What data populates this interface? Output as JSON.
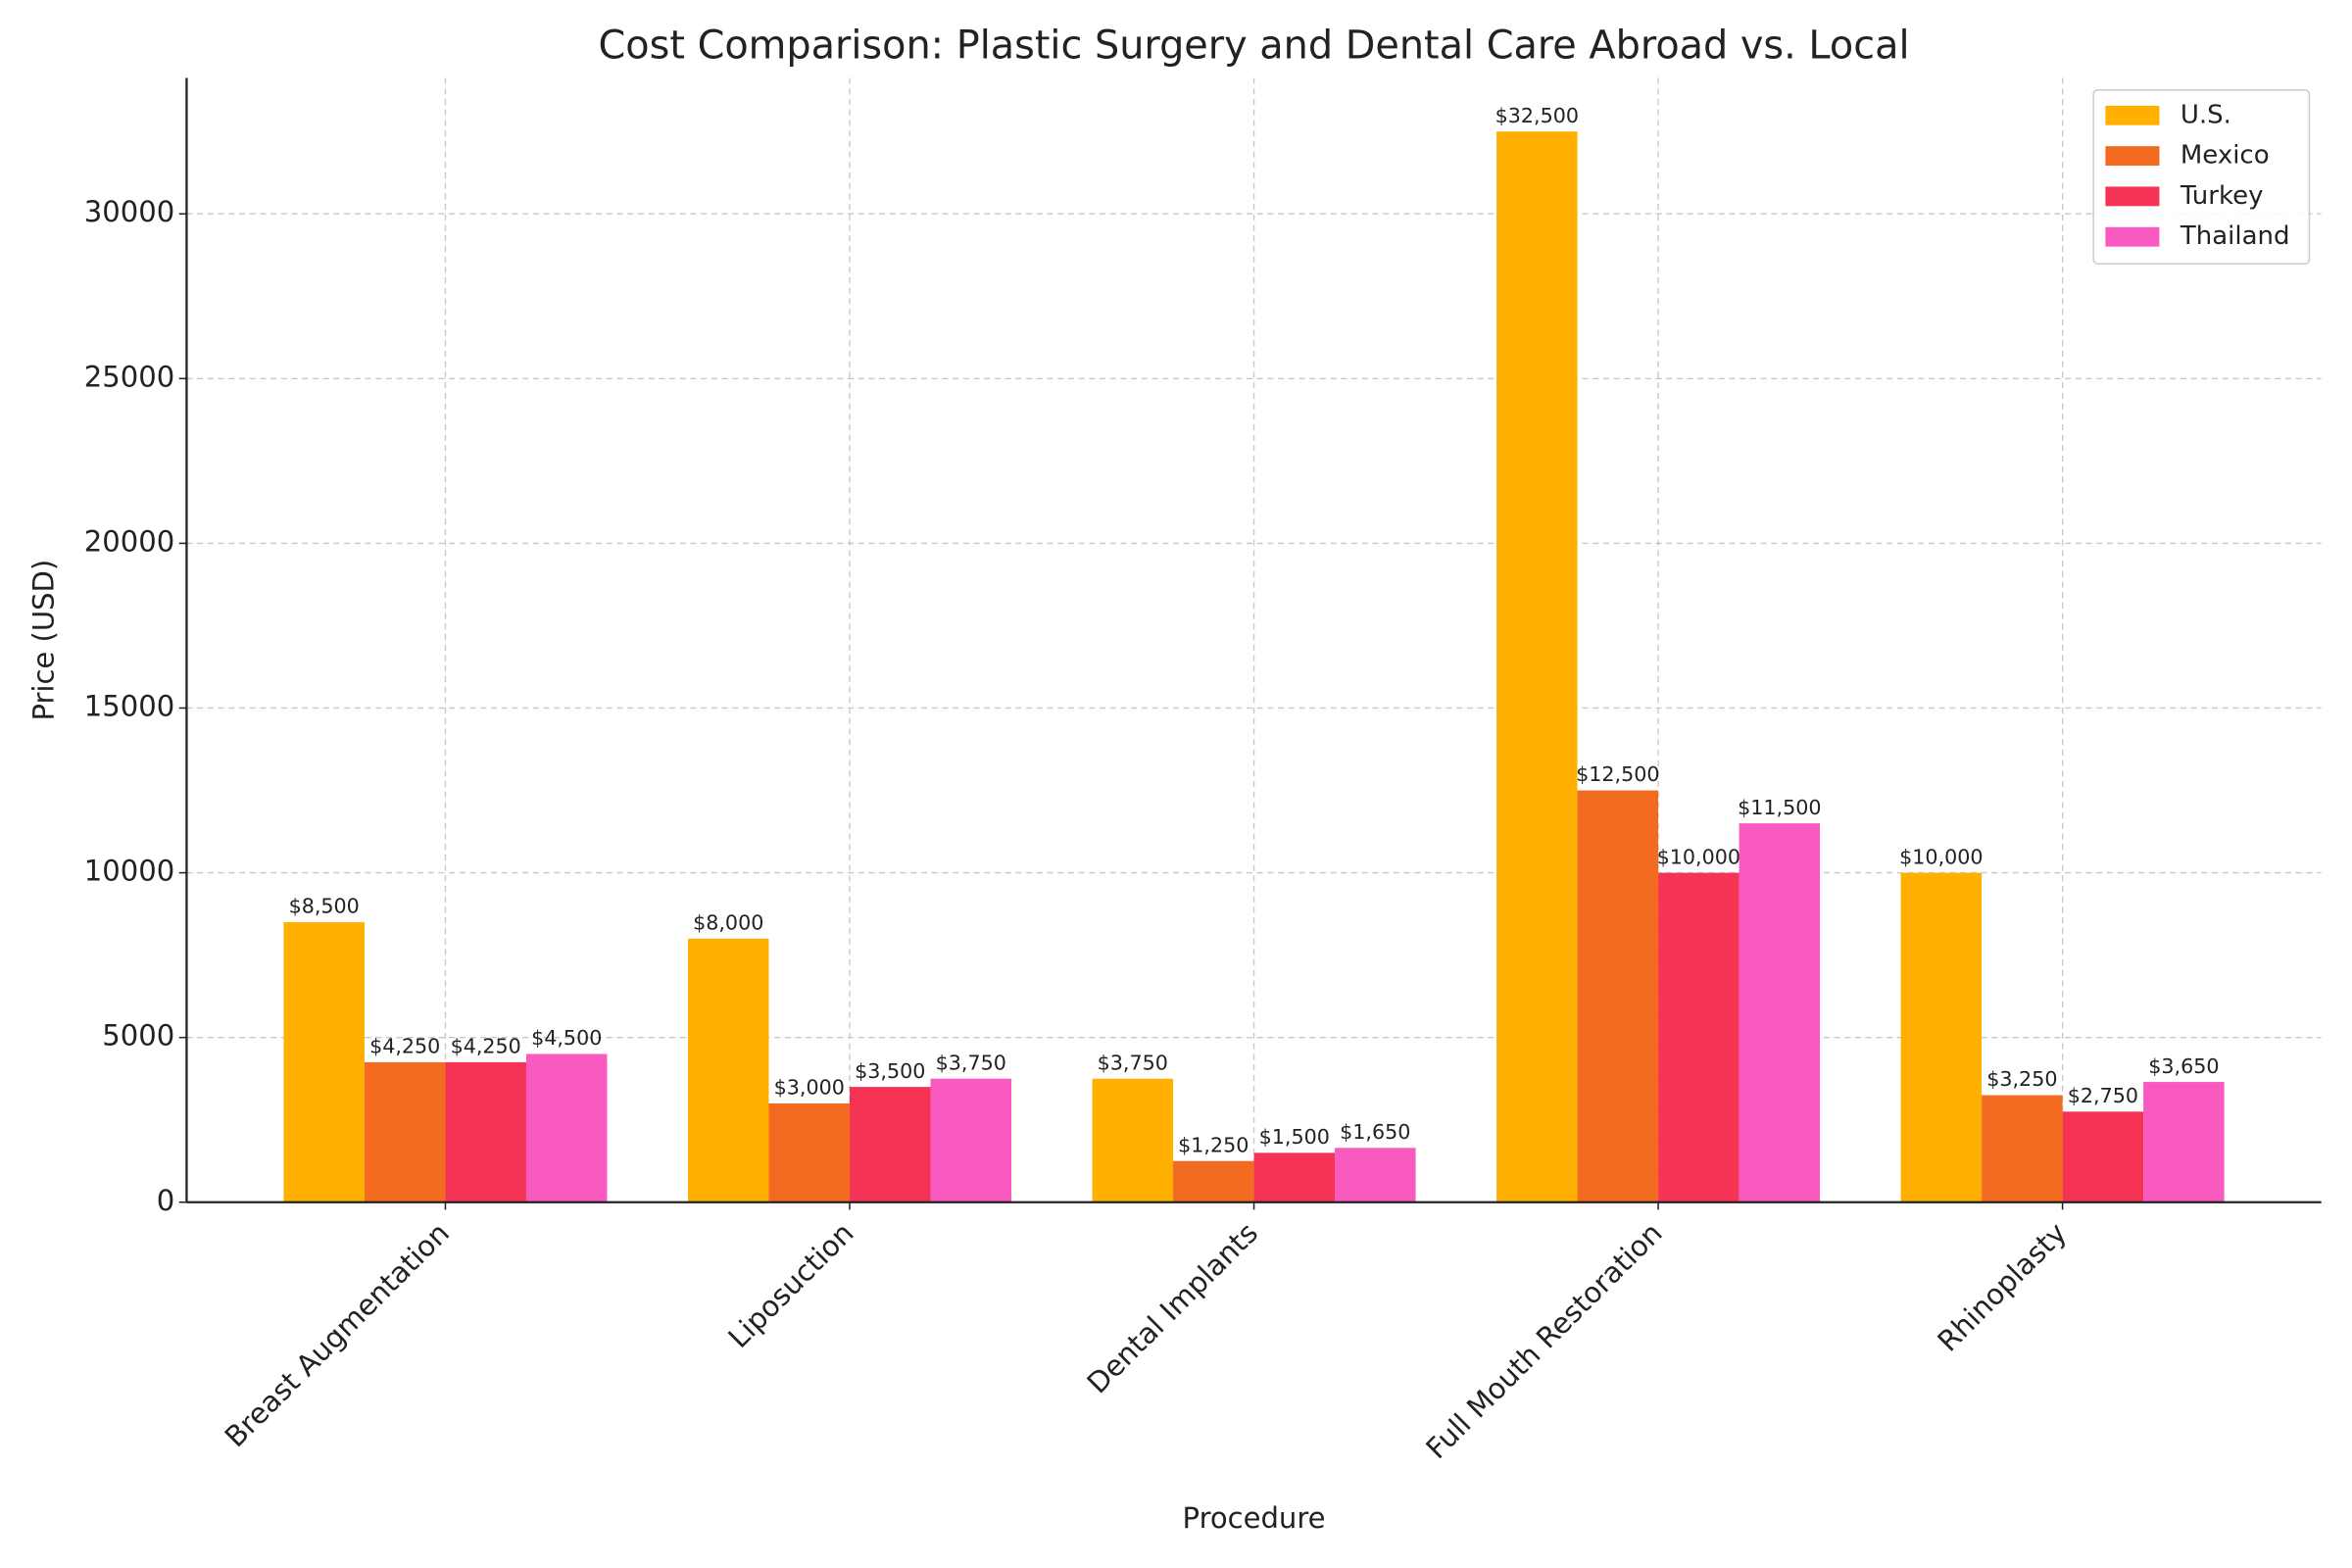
{
  "chart_data": {
    "type": "bar",
    "title": "Cost Comparison: Plastic Surgery and Dental Care Abroad vs. Local",
    "x_label": "Procedure",
    "y_label": "Price (USD)",
    "categories": [
      "Breast Augmentation",
      "Liposuction",
      "Dental Implants",
      "Full Mouth Restoration",
      "Rhinoplasty"
    ],
    "series": [
      {
        "name": "U.S.",
        "color": "#FFB000",
        "values": [
          8500,
          8000,
          3750,
          32500,
          10000
        ],
        "value_labels": [
          "$8,500",
          "$8,000",
          "$3,750",
          "$32,500",
          "$10,000"
        ]
      },
      {
        "name": "Mexico",
        "color": "#F26B21",
        "values": [
          4250,
          3000,
          1250,
          12500,
          3250
        ],
        "value_labels": [
          "$4,250",
          "$3,000",
          "$1,250",
          "$12,500",
          "$3,250"
        ]
      },
      {
        "name": "Turkey",
        "color": "#F53455",
        "values": [
          4250,
          3500,
          1500,
          10000,
          2750
        ],
        "value_labels": [
          "$4,250",
          "$3,500",
          "$1,500",
          "$10,000",
          "$2,750"
        ]
      },
      {
        "name": "Thailand",
        "color": "#F95ABF",
        "values": [
          4500,
          3750,
          1650,
          11500,
          3650
        ],
        "value_labels": [
          "$4,500",
          "$3,750",
          "$1,650",
          "$11,500",
          "$3,650"
        ]
      }
    ],
    "ylim": [
      0,
      34125
    ],
    "yticks": [
      0,
      5000,
      10000,
      15000,
      20000,
      25000,
      30000
    ],
    "grid": true,
    "legend": "upper right"
  }
}
